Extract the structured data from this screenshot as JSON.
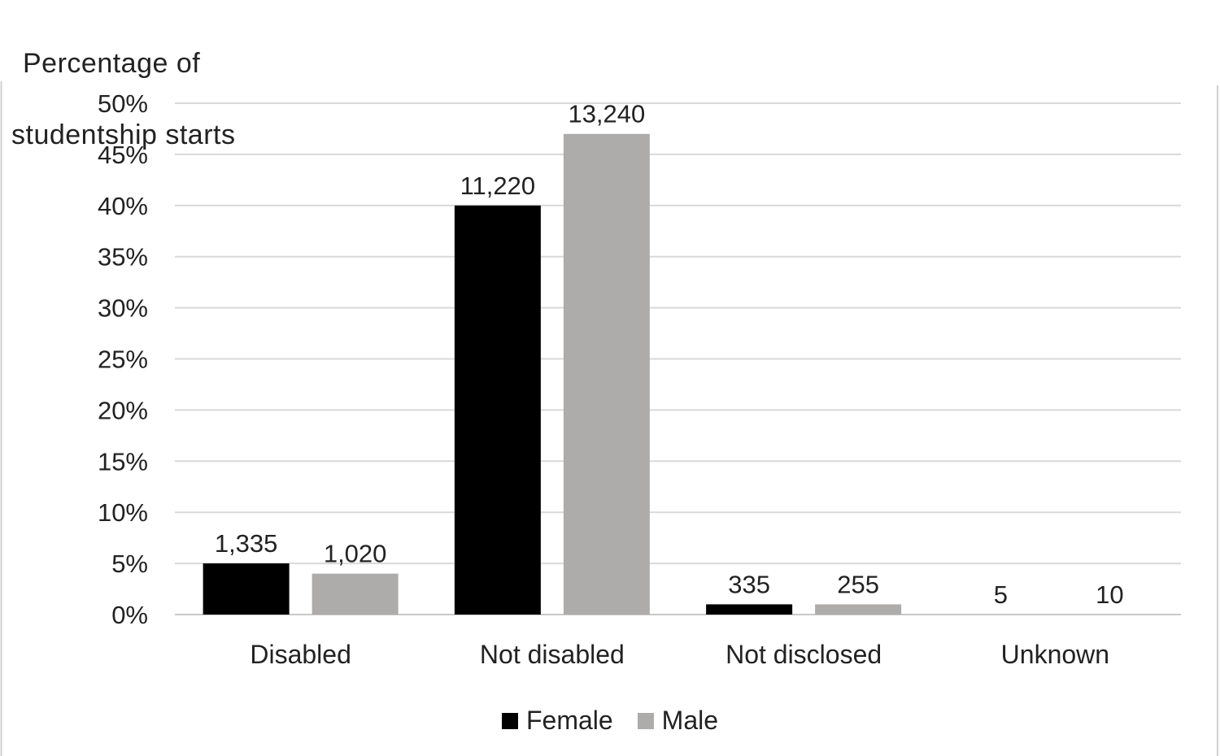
{
  "chart_data": {
    "type": "bar",
    "title": "",
    "ylabel": "Percentage of studentship starts",
    "ylabel_lines": [
      "Percentage of",
      "studentship starts"
    ],
    "xlabel": "",
    "categories": [
      "Disabled",
      "Not disabled",
      "Not disclosed",
      "Unknown"
    ],
    "series": [
      {
        "name": "Female",
        "color": "#000000",
        "values": [
          5,
          40,
          1,
          0
        ],
        "data_labels": [
          "1,335",
          "11,220",
          "335",
          "5"
        ]
      },
      {
        "name": "Male",
        "color": "#aeabab",
        "values": [
          4,
          47,
          1,
          0
        ],
        "data_labels": [
          "1,020",
          "13,240",
          "255",
          "10"
        ]
      }
    ],
    "ylim": [
      0,
      50
    ],
    "yticks": [
      0,
      5,
      10,
      15,
      20,
      25,
      30,
      35,
      40,
      45,
      50
    ],
    "ytick_labels": [
      "0%",
      "5%",
      "10%",
      "15%",
      "20%",
      "25%",
      "30%",
      "35%",
      "40%",
      "45%",
      "50%"
    ],
    "grid": true,
    "gridline_color": "#d9d9d9",
    "legend_position": "bottom"
  }
}
